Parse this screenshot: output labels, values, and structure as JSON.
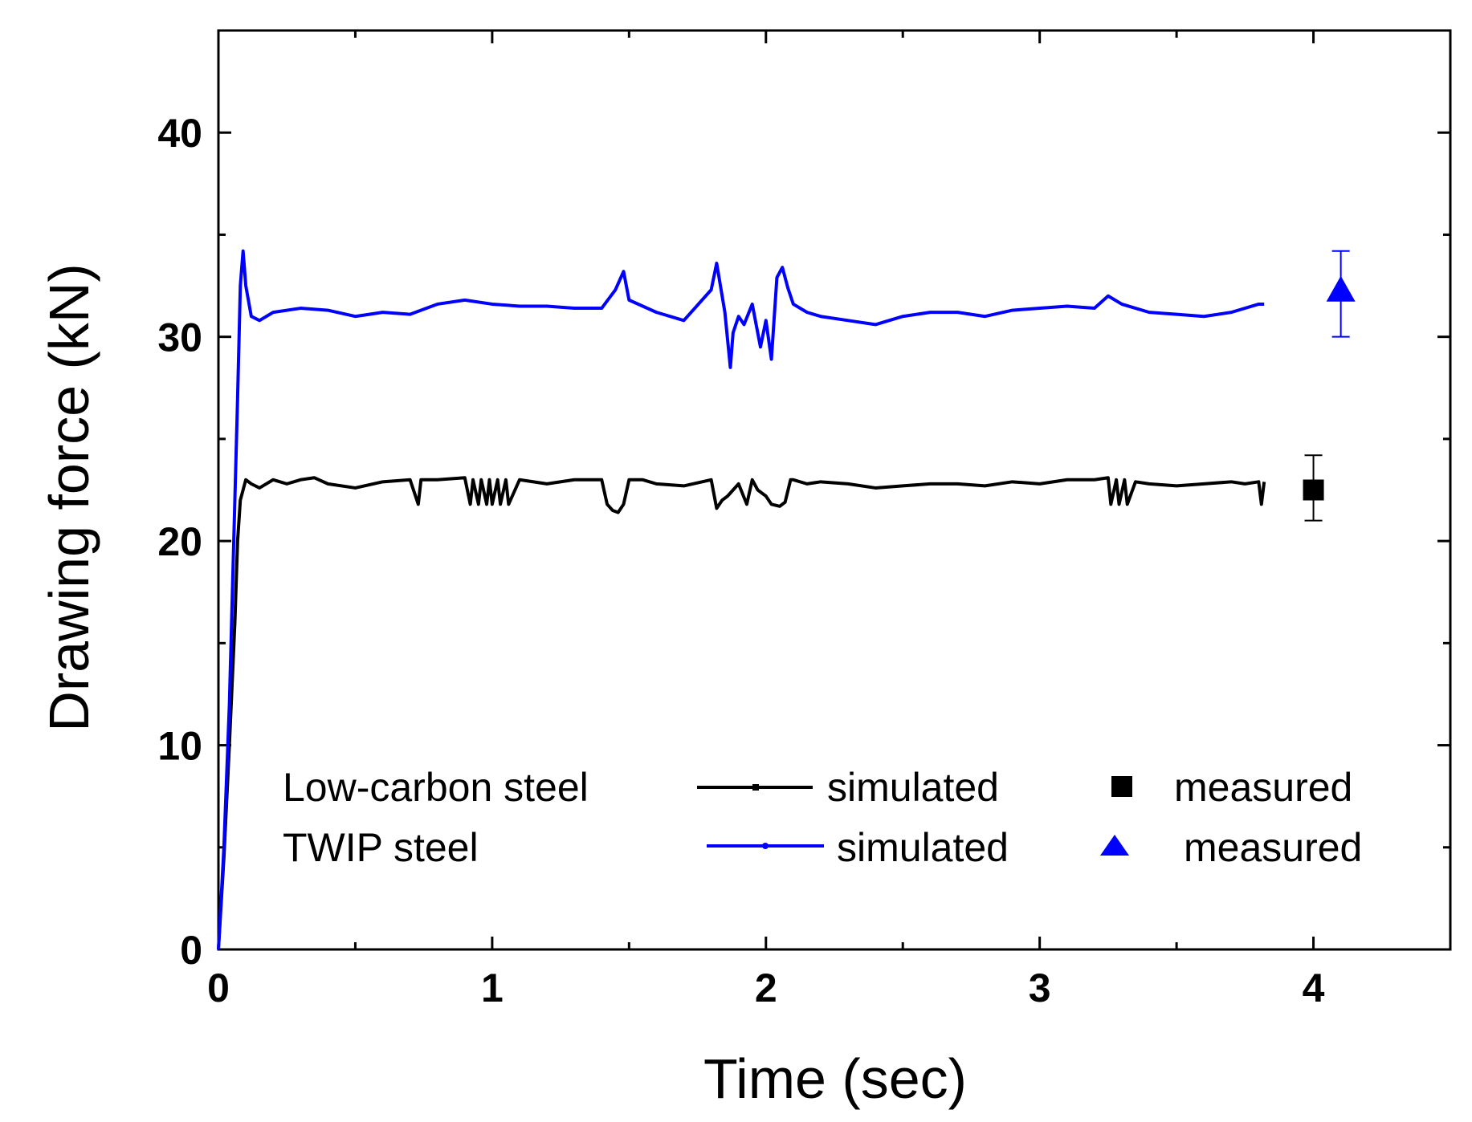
{
  "chart_data": {
    "type": "line",
    "xlabel": "Time (sec)",
    "ylabel": "Drawing force (kN)",
    "xlim": [
      0,
      4.5
    ],
    "ylim": [
      0,
      45
    ],
    "x_ticks": [
      "0",
      "1",
      "2",
      "3",
      "4"
    ],
    "y_ticks": [
      "0",
      "10",
      "20",
      "30",
      "40"
    ],
    "grid": false,
    "legend_position": "bottom-right",
    "colors": {
      "low_carbon": "#000000",
      "twip": "#0000ff",
      "axis": "#000000"
    },
    "legend": {
      "rows": [
        {
          "material": "Low-carbon steel",
          "simulated_label": "simulated",
          "measured_label": "measured",
          "line_marker": "square",
          "measured_marker": "square-icon"
        },
        {
          "material": "TWIP steel",
          "simulated_label": "simulated",
          "measured_label": "measured",
          "line_marker": "circle",
          "measured_marker": "triangle-icon"
        }
      ]
    },
    "series": [
      {
        "name": "Low-carbon steel simulated",
        "kind": "line",
        "color": "#000000",
        "x": [
          0,
          0.02,
          0.04,
          0.06,
          0.07,
          0.08,
          0.09,
          0.1,
          0.12,
          0.15,
          0.2,
          0.25,
          0.3,
          0.35,
          0.4,
          0.5,
          0.6,
          0.7,
          0.73,
          0.74,
          0.75,
          0.8,
          0.9,
          0.92,
          0.93,
          0.95,
          0.96,
          0.98,
          0.99,
          1.0,
          1.02,
          1.03,
          1.05,
          1.06,
          1.1,
          1.2,
          1.3,
          1.4,
          1.42,
          1.44,
          1.46,
          1.48,
          1.5,
          1.55,
          1.6,
          1.7,
          1.8,
          1.82,
          1.84,
          1.86,
          1.9,
          1.93,
          1.95,
          1.97,
          2.0,
          2.02,
          2.05,
          2.07,
          2.09,
          2.1,
          2.15,
          2.2,
          2.3,
          2.4,
          2.5,
          2.6,
          2.7,
          2.8,
          2.9,
          3.0,
          3.1,
          3.2,
          3.25,
          3.26,
          3.28,
          3.29,
          3.31,
          3.32,
          3.35,
          3.4,
          3.5,
          3.6,
          3.7,
          3.75,
          3.8,
          3.81,
          3.82
        ],
        "y": [
          0,
          4.5,
          10,
          16,
          20,
          22,
          22.5,
          23,
          22.8,
          22.6,
          23,
          22.8,
          23,
          23.1,
          22.8,
          22.6,
          22.9,
          23,
          21.8,
          23,
          23,
          23,
          23.1,
          21.8,
          23,
          21.8,
          23,
          21.8,
          23,
          21.8,
          23,
          21.8,
          23,
          21.8,
          23,
          22.8,
          23,
          23,
          21.8,
          21.5,
          21.4,
          21.8,
          23,
          23,
          22.8,
          22.7,
          23,
          21.6,
          22,
          22.2,
          22.8,
          21.8,
          23,
          22.5,
          22.2,
          21.8,
          21.7,
          21.9,
          23,
          23,
          22.8,
          22.9,
          22.8,
          22.6,
          22.7,
          22.8,
          22.8,
          22.7,
          22.9,
          22.8,
          23,
          23,
          23.1,
          21.8,
          23,
          21.8,
          23,
          21.8,
          22.9,
          22.8,
          22.7,
          22.8,
          22.9,
          22.8,
          22.9,
          21.8,
          22.9
        ]
      },
      {
        "name": "TWIP steel simulated",
        "kind": "line",
        "color": "#0000ff",
        "x": [
          0,
          0.02,
          0.04,
          0.06,
          0.07,
          0.08,
          0.09,
          0.1,
          0.12,
          0.15,
          0.2,
          0.3,
          0.4,
          0.5,
          0.6,
          0.7,
          0.8,
          0.9,
          1.0,
          1.1,
          1.2,
          1.3,
          1.4,
          1.45,
          1.48,
          1.5,
          1.55,
          1.6,
          1.7,
          1.8,
          1.82,
          1.85,
          1.87,
          1.88,
          1.9,
          1.92,
          1.95,
          1.98,
          2.0,
          2.02,
          2.04,
          2.06,
          2.08,
          2.1,
          2.15,
          2.2,
          2.3,
          2.4,
          2.5,
          2.6,
          2.7,
          2.8,
          2.9,
          3.0,
          3.1,
          3.2,
          3.25,
          3.3,
          3.4,
          3.5,
          3.6,
          3.7,
          3.8,
          3.82
        ],
        "y": [
          0,
          5,
          12,
          22,
          27,
          32.5,
          34.2,
          32.5,
          31,
          30.8,
          31.2,
          31.4,
          31.3,
          31,
          31.2,
          31.1,
          31.6,
          31.8,
          31.6,
          31.5,
          31.5,
          31.4,
          31.4,
          32.3,
          33.2,
          31.8,
          31.5,
          31.2,
          30.8,
          32.3,
          33.6,
          31.2,
          28.5,
          30.2,
          31,
          30.6,
          31.6,
          29.5,
          30.8,
          28.9,
          32.9,
          33.4,
          32.4,
          31.6,
          31.2,
          31,
          30.8,
          30.6,
          31,
          31.2,
          31.2,
          31,
          31.3,
          31.4,
          31.5,
          31.4,
          32,
          31.6,
          31.2,
          31.1,
          31,
          31.2,
          31.6,
          31.6
        ]
      },
      {
        "name": "Low-carbon steel measured",
        "kind": "point",
        "color": "#000000",
        "marker": "square",
        "x": [
          4.0
        ],
        "y": [
          22.5
        ],
        "error": [
          [
            21.0,
            24.2
          ]
        ]
      },
      {
        "name": "TWIP steel measured",
        "kind": "point",
        "color": "#0000ff",
        "marker": "triangle",
        "x": [
          4.1
        ],
        "y": [
          32.2
        ],
        "error": [
          [
            30.0,
            34.2
          ]
        ]
      }
    ]
  }
}
